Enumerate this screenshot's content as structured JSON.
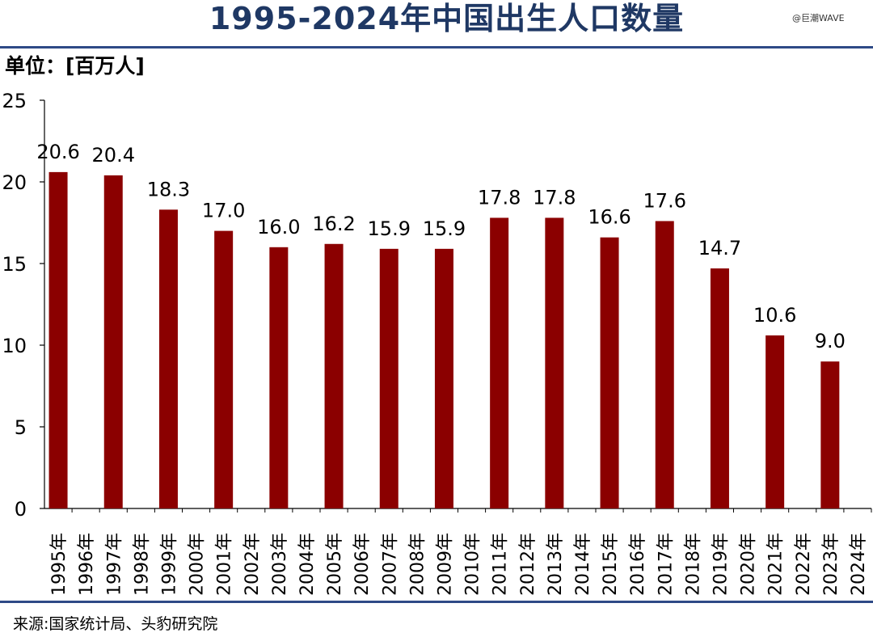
{
  "title": "1995-2024年中国出生人口数量",
  "watermark": "@巨潮WAVE",
  "unit_label": "单位：[百万人]",
  "source": "来源:国家统计局、头豹研究院",
  "colors": {
    "bar": "#8b0000",
    "title": "#1f3864",
    "rule": "#2e4a86"
  },
  "chart_data": {
    "type": "bar",
    "title": "1995-2024年中国出生人口数量",
    "ylabel": "单位：[百万人]",
    "xlabel": "",
    "ylim": [
      0,
      25
    ],
    "yticks": [
      0,
      5,
      10,
      15,
      20,
      25
    ],
    "grid": false,
    "categories": [
      "1995年",
      "1996年",
      "1997年",
      "1998年",
      "1999年",
      "2000年",
      "2001年",
      "2002年",
      "2003年",
      "2004年",
      "2005年",
      "2006年",
      "2007年",
      "2008年",
      "2009年",
      "2010年",
      "2011年",
      "2012年",
      "2013年",
      "2014年",
      "2015年",
      "2016年",
      "2017年",
      "2018年",
      "2019年",
      "2020年",
      "2021年",
      "2022年",
      "2023年",
      "2024年"
    ],
    "values": [
      20.6,
      null,
      20.4,
      null,
      18.3,
      null,
      17.0,
      null,
      16.0,
      null,
      16.2,
      null,
      15.9,
      null,
      15.9,
      null,
      17.8,
      null,
      17.8,
      null,
      16.6,
      null,
      17.6,
      null,
      14.7,
      null,
      10.6,
      null,
      9.0,
      null
    ],
    "data_labels": [
      "20.6",
      null,
      "20.4",
      null,
      "18.3",
      null,
      "17.0",
      null,
      "16.0",
      null,
      "16.2",
      null,
      "15.9",
      null,
      "15.9",
      null,
      "17.8",
      null,
      "17.8",
      null,
      "16.6",
      null,
      "17.6",
      null,
      "14.7",
      null,
      "10.6",
      null,
      "9.0",
      null
    ]
  }
}
